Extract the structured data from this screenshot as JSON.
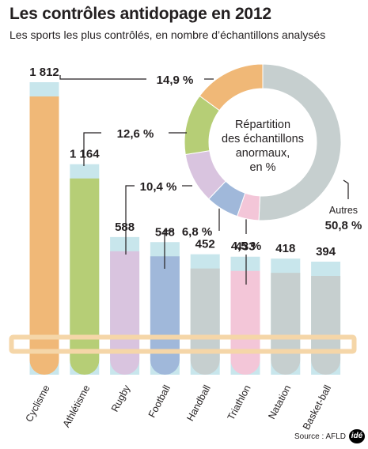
{
  "header": {
    "title": "Les contrôles antidopage en 2012",
    "subtitle": "Les sports les plus contrôlés, en nombre d’échantillons analysés"
  },
  "source": "Source : AFLD",
  "logo": "idé",
  "chart_data": [
    {
      "type": "bar",
      "categories": [
        "Cyclisme",
        "Athlétisme",
        "Rugby",
        "Football",
        "Handball",
        "Triathlon",
        "Natation",
        "Basket-ball"
      ],
      "values": [
        1812,
        1164,
        588,
        548,
        452,
        433,
        418,
        394
      ],
      "value_labels": [
        "1 812",
        "1 164",
        "588",
        "548",
        "452",
        "433",
        "418",
        "394"
      ],
      "colors": [
        "#f0b877",
        "#b6ce76",
        "#d9c4df",
        "#a0b8da",
        "#c6cfcf",
        "#f3c6d8",
        "#c6cfcf",
        "#c6cfcf"
      ],
      "ylim": [
        0,
        1812
      ]
    },
    {
      "type": "pie",
      "style": "donut",
      "title": "Répartition des échantillons anormaux, en %",
      "slices": [
        {
          "category": "Autres",
          "value": 50.8,
          "label": "50,8 %",
          "color": "#c6cfcf"
        },
        {
          "category": "Triathlon",
          "value": 4.5,
          "label": "4,5 %",
          "color": "#f3c6d8"
        },
        {
          "category": "Football",
          "value": 6.8,
          "label": "6,8 %",
          "color": "#a0b8da"
        },
        {
          "category": "Rugby",
          "value": 10.4,
          "label": "10,4 %",
          "color": "#d9c4df"
        },
        {
          "category": "Athlétisme",
          "value": 12.6,
          "label": "12,6 %",
          "color": "#b6ce76"
        },
        {
          "category": "Cyclisme",
          "value": 14.9,
          "label": "14,9 %",
          "color": "#f0b877"
        }
      ],
      "start": "top",
      "direction": "clockwise"
    }
  ],
  "style": {
    "tube_top_color": "#c8e6ec",
    "rack_color": "#f5d6a8",
    "leader_color": "#231f20"
  }
}
